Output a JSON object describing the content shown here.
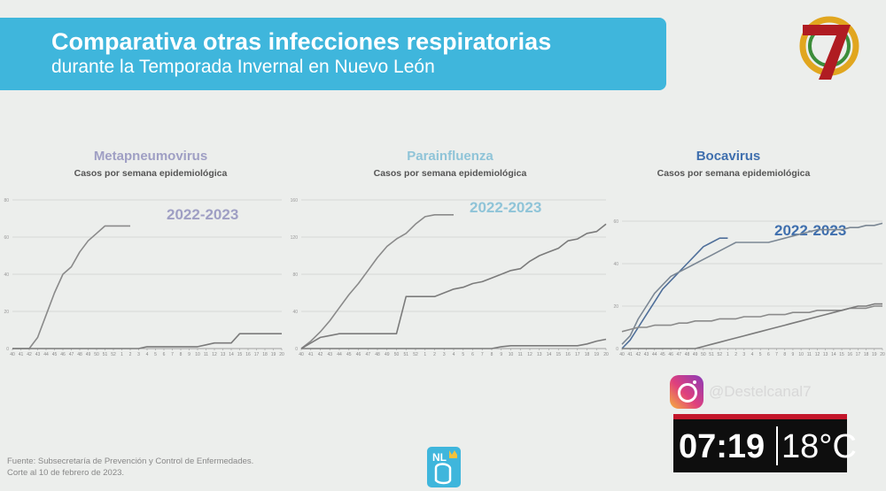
{
  "header": {
    "title": "Comparativa otras infecciones respiratorias",
    "subtitle": "durante la Temporada Invernal en Nuevo León"
  },
  "broadcast": {
    "social_handle": "@Destelcanal7",
    "time": "07:19",
    "temperature": "18°C",
    "logo_icon": "canal-7-logo"
  },
  "footer": {
    "source_line1": "Fuente: Subsecretaría de Prevención y Control de Enfermedades.",
    "source_line2": "Corte al 10 de febrero de 2023."
  },
  "colors": {
    "banner": "#3fb6dc",
    "metapneumovirus": "#9f9fc4",
    "parainfluenza": "#8fc4d8",
    "bocavirus": "#3f6fae",
    "current_line": "#8a8a8a",
    "previous_line": "#7b7b7b"
  },
  "chart_data": [
    {
      "type": "line",
      "title": "Metapneumovirus",
      "subtitle": "Casos por semana epidemiológica",
      "xlabel": "",
      "ylabel": "",
      "weeks": [
        40,
        41,
        42,
        43,
        44,
        45,
        46,
        47,
        48,
        49,
        50,
        51,
        52,
        1,
        2,
        3,
        4,
        5,
        6,
        7,
        8,
        9,
        10,
        11,
        12,
        13,
        14,
        15,
        16,
        17,
        18,
        19,
        20
      ],
      "ylim": [
        0,
        80
      ],
      "grid": true,
      "series": [
        {
          "name": "2022-2023",
          "values": [
            0,
            0,
            0,
            6,
            18,
            30,
            40,
            44,
            52,
            58,
            62,
            66,
            66,
            66,
            66,
            null,
            null,
            null,
            null,
            null,
            null,
            null,
            null,
            null,
            null,
            null,
            null,
            null,
            null,
            null,
            null,
            null,
            null
          ]
        },
        {
          "name": "",
          "values": [
            0,
            0,
            0,
            0,
            0,
            0,
            0,
            0,
            0,
            0,
            0,
            0,
            0,
            0,
            0,
            0,
            1,
            1,
            1,
            1,
            1,
            1,
            1,
            2,
            3,
            3,
            3,
            8,
            8,
            8,
            8,
            8,
            8
          ]
        }
      ]
    },
    {
      "type": "line",
      "title": "Parainfluenza",
      "subtitle": "Casos por semana epidemiológica",
      "xlabel": "",
      "ylabel": "",
      "weeks": [
        40,
        41,
        42,
        43,
        44,
        45,
        46,
        47,
        48,
        49,
        50,
        51,
        52,
        1,
        2,
        3,
        4,
        5,
        6,
        7,
        8,
        9,
        10,
        11,
        12,
        13,
        14,
        15,
        16,
        17,
        18,
        19,
        20
      ],
      "ylim": [
        0,
        160
      ],
      "grid": true,
      "series": [
        {
          "name": "2022-2023",
          "values": [
            0,
            8,
            18,
            30,
            44,
            58,
            70,
            84,
            98,
            110,
            118,
            124,
            134,
            142,
            144,
            144,
            144,
            null,
            null,
            null,
            null,
            null,
            null,
            null,
            null,
            null,
            null,
            null,
            null,
            null,
            null,
            null,
            null
          ]
        },
        {
          "name": "",
          "values": [
            0,
            6,
            12,
            14,
            16,
            16,
            16,
            16,
            16,
            16,
            16,
            56,
            56,
            56,
            56,
            60,
            64,
            66,
            70,
            72,
            76,
            80,
            84,
            86,
            94,
            100,
            104,
            108,
            116,
            118,
            124,
            126,
            134
          ]
        },
        {
          "name": "",
          "values": [
            0,
            0,
            0,
            0,
            0,
            0,
            0,
            0,
            0,
            0,
            0,
            0,
            0,
            0,
            0,
            0,
            0,
            0,
            0,
            0,
            0,
            2,
            3,
            3,
            3,
            3,
            3,
            3,
            3,
            3,
            5,
            8,
            10
          ]
        }
      ]
    },
    {
      "type": "line",
      "title": "Bocavirus",
      "subtitle": "Casos por semana epidemiológica",
      "xlabel": "",
      "ylabel": "",
      "weeks": [
        40,
        41,
        42,
        43,
        44,
        45,
        46,
        47,
        48,
        49,
        50,
        51,
        52,
        1,
        2,
        3,
        4,
        5,
        6,
        7,
        8,
        9,
        10,
        11,
        12,
        13,
        14,
        15,
        16,
        17,
        18,
        19,
        20
      ],
      "ylim": [
        0,
        70
      ],
      "grid": true,
      "series": [
        {
          "name": "2022-2023",
          "values": [
            0,
            4,
            10,
            16,
            22,
            28,
            32,
            36,
            40,
            44,
            48,
            50,
            52,
            52,
            null,
            null,
            null,
            null,
            null,
            null,
            null,
            null,
            null,
            null,
            null,
            null,
            null,
            null,
            null,
            null,
            null,
            null,
            null
          ]
        },
        {
          "name": "",
          "values": [
            2,
            6,
            14,
            20,
            26,
            30,
            34,
            36,
            38,
            40,
            42,
            44,
            46,
            48,
            50,
            50,
            50,
            50,
            50,
            51,
            52,
            53,
            54,
            55,
            56,
            56,
            56,
            56,
            57,
            57,
            58,
            58,
            59
          ]
        },
        {
          "name": "",
          "values": [
            8,
            9,
            10,
            10,
            11,
            11,
            11,
            12,
            12,
            13,
            13,
            13,
            14,
            14,
            14,
            15,
            15,
            15,
            16,
            16,
            16,
            17,
            17,
            17,
            18,
            18,
            18,
            18,
            19,
            19,
            19,
            20,
            20
          ]
        },
        {
          "name": "",
          "values": [
            0,
            0,
            0,
            0,
            0,
            0,
            0,
            0,
            0,
            0,
            1,
            2,
            3,
            4,
            5,
            6,
            7,
            8,
            9,
            10,
            11,
            12,
            13,
            14,
            15,
            16,
            17,
            18,
            19,
            20,
            20,
            21,
            21
          ]
        }
      ]
    }
  ]
}
